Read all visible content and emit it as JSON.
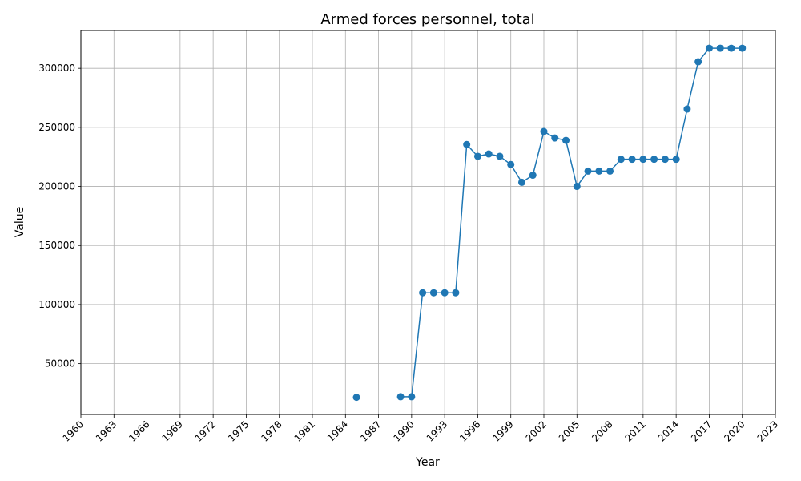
{
  "chart_data": {
    "type": "line",
    "title": "Armed forces personnel, total",
    "xlabel": "Year",
    "ylabel": "Value",
    "xlim": [
      1960,
      2023
    ],
    "ylim": [
      7000,
      332000
    ],
    "x_ticks": [
      1960,
      1963,
      1966,
      1969,
      1972,
      1975,
      1978,
      1981,
      1984,
      1987,
      1990,
      1993,
      1996,
      1999,
      2002,
      2005,
      2008,
      2011,
      2014,
      2017,
      2020,
      2023
    ],
    "y_ticks": [
      50000,
      100000,
      150000,
      200000,
      250000,
      300000
    ],
    "grid": true,
    "series_color": "#1f77b4",
    "series": [
      {
        "values": [
          [
            1985,
            21500
          ],
          [
            1989,
            22000
          ],
          [
            1990,
            22000
          ],
          [
            1991,
            110000
          ],
          [
            1992,
            110000
          ],
          [
            1993,
            110000
          ],
          [
            1994,
            110000
          ],
          [
            1995,
            235500
          ],
          [
            1996,
            225500
          ],
          [
            1997,
            227500
          ],
          [
            1998,
            225500
          ],
          [
            1999,
            218500
          ],
          [
            2000,
            203500
          ],
          [
            2001,
            209500
          ],
          [
            2002,
            246500
          ],
          [
            2003,
            241000
          ],
          [
            2004,
            239000
          ],
          [
            2005,
            200000
          ],
          [
            2006,
            213000
          ],
          [
            2007,
            213000
          ],
          [
            2008,
            213000
          ],
          [
            2009,
            223000
          ],
          [
            2010,
            223000
          ],
          [
            2011,
            223000
          ],
          [
            2012,
            223000
          ],
          [
            2013,
            223000
          ],
          [
            2014,
            223000
          ],
          [
            2015,
            265500
          ],
          [
            2016,
            305500
          ],
          [
            2017,
            317000
          ],
          [
            2018,
            317000
          ],
          [
            2019,
            317000
          ],
          [
            2020,
            317000
          ]
        ]
      }
    ]
  }
}
